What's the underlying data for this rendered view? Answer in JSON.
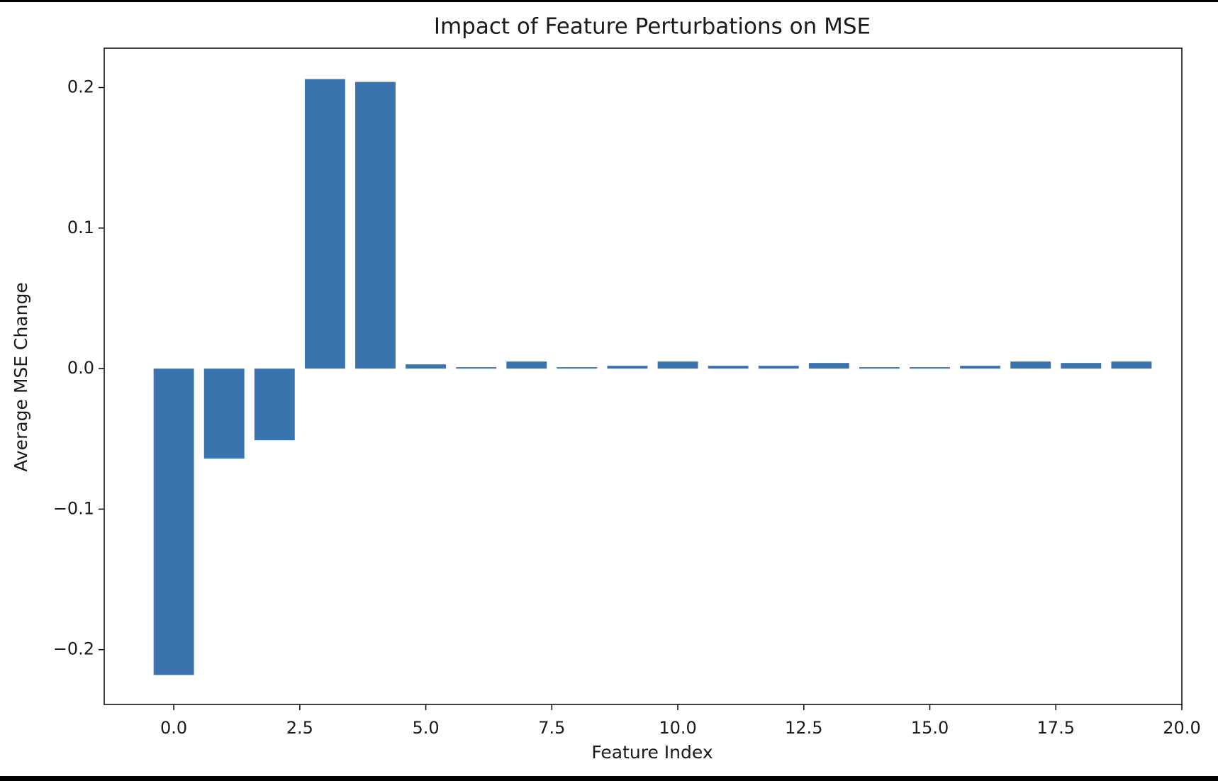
{
  "chart_data": {
    "type": "bar",
    "title": "Impact of Feature Perturbations on MSE",
    "xlabel": "Feature Index",
    "ylabel": "Average MSE Change",
    "x": [
      0,
      1,
      2,
      3,
      4,
      5,
      6,
      7,
      8,
      9,
      10,
      11,
      12,
      13,
      14,
      15,
      16,
      17,
      18,
      19
    ],
    "values": [
      -0.218,
      -0.064,
      -0.051,
      0.206,
      0.204,
      0.003,
      0.001,
      0.005,
      0.001,
      0.002,
      0.005,
      0.002,
      0.002,
      0.004,
      0.001,
      0.001,
      0.002,
      0.005,
      0.004,
      0.005
    ],
    "xlim": [
      -1.38,
      20.0
    ],
    "ylim": [
      -0.239,
      0.228
    ],
    "xticks": [
      0.0,
      2.5,
      5.0,
      7.5,
      10.0,
      12.5,
      15.0,
      17.5,
      20.0
    ],
    "xtick_labels": [
      "0.0",
      "2.5",
      "5.0",
      "7.5",
      "10.0",
      "12.5",
      "15.0",
      "17.5",
      "20.0"
    ],
    "yticks": [
      -0.2,
      -0.1,
      0.0,
      0.1,
      0.2
    ],
    "ytick_labels": [
      "−0.2",
      "−0.1",
      "0.0",
      "0.1",
      "0.2"
    ],
    "bar_color": "#3a73ae",
    "grid": false,
    "legend": false
  }
}
